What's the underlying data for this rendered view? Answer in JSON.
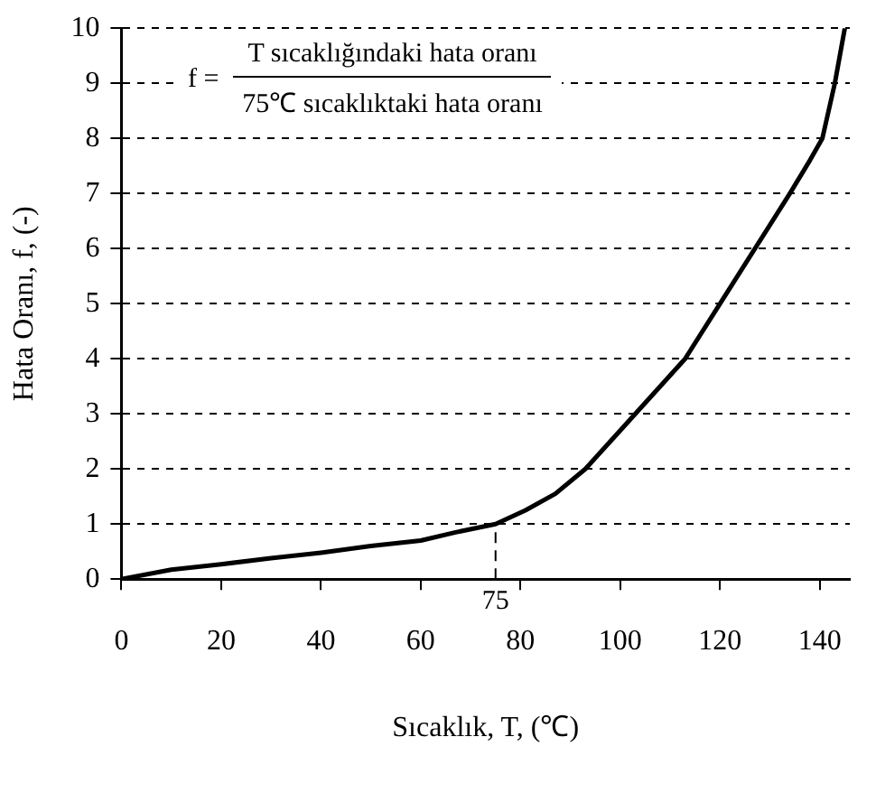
{
  "chart_data": {
    "type": "line",
    "xlabel": "Sıcaklık, T, (℃)",
    "ylabel": "Hata Oranı, f, (-)",
    "annotations": [
      "f =",
      "T sıcaklığındaki hata oranı",
      "75℃ sıcaklıktaki hata oranı"
    ],
    "series": [
      {
        "color": "#000000",
        "x": [
          0,
          10,
          20,
          30,
          40,
          50,
          60,
          67,
          75,
          81,
          87,
          93,
          98,
          103,
          108,
          113,
          120,
          127,
          134,
          138,
          140.5,
          143,
          144,
          145
        ],
        "values": [
          0,
          0.17,
          0.27,
          0.38,
          0.48,
          0.6,
          0.7,
          0.85,
          1,
          1.25,
          1.55,
          2,
          2.5,
          3,
          3.5,
          4,
          5,
          6,
          7,
          7.6,
          8,
          9,
          9.5,
          10
        ]
      }
    ],
    "xlim": [
      0,
      146
    ],
    "xticks": [
      0,
      20,
      40,
      60,
      80,
      100,
      120,
      140
    ],
    "ylim": [
      0,
      10
    ],
    "yticks": [
      0,
      1,
      2,
      3,
      4,
      5,
      6,
      7,
      8,
      9,
      10
    ],
    "ref_lines": [
      {
        "axis": "x",
        "value": 75,
        "label": "75",
        "line_style": "dashed"
      }
    ],
    "grid": "y",
    "legend": false,
    "marker": "none",
    "line_style": "solid"
  }
}
